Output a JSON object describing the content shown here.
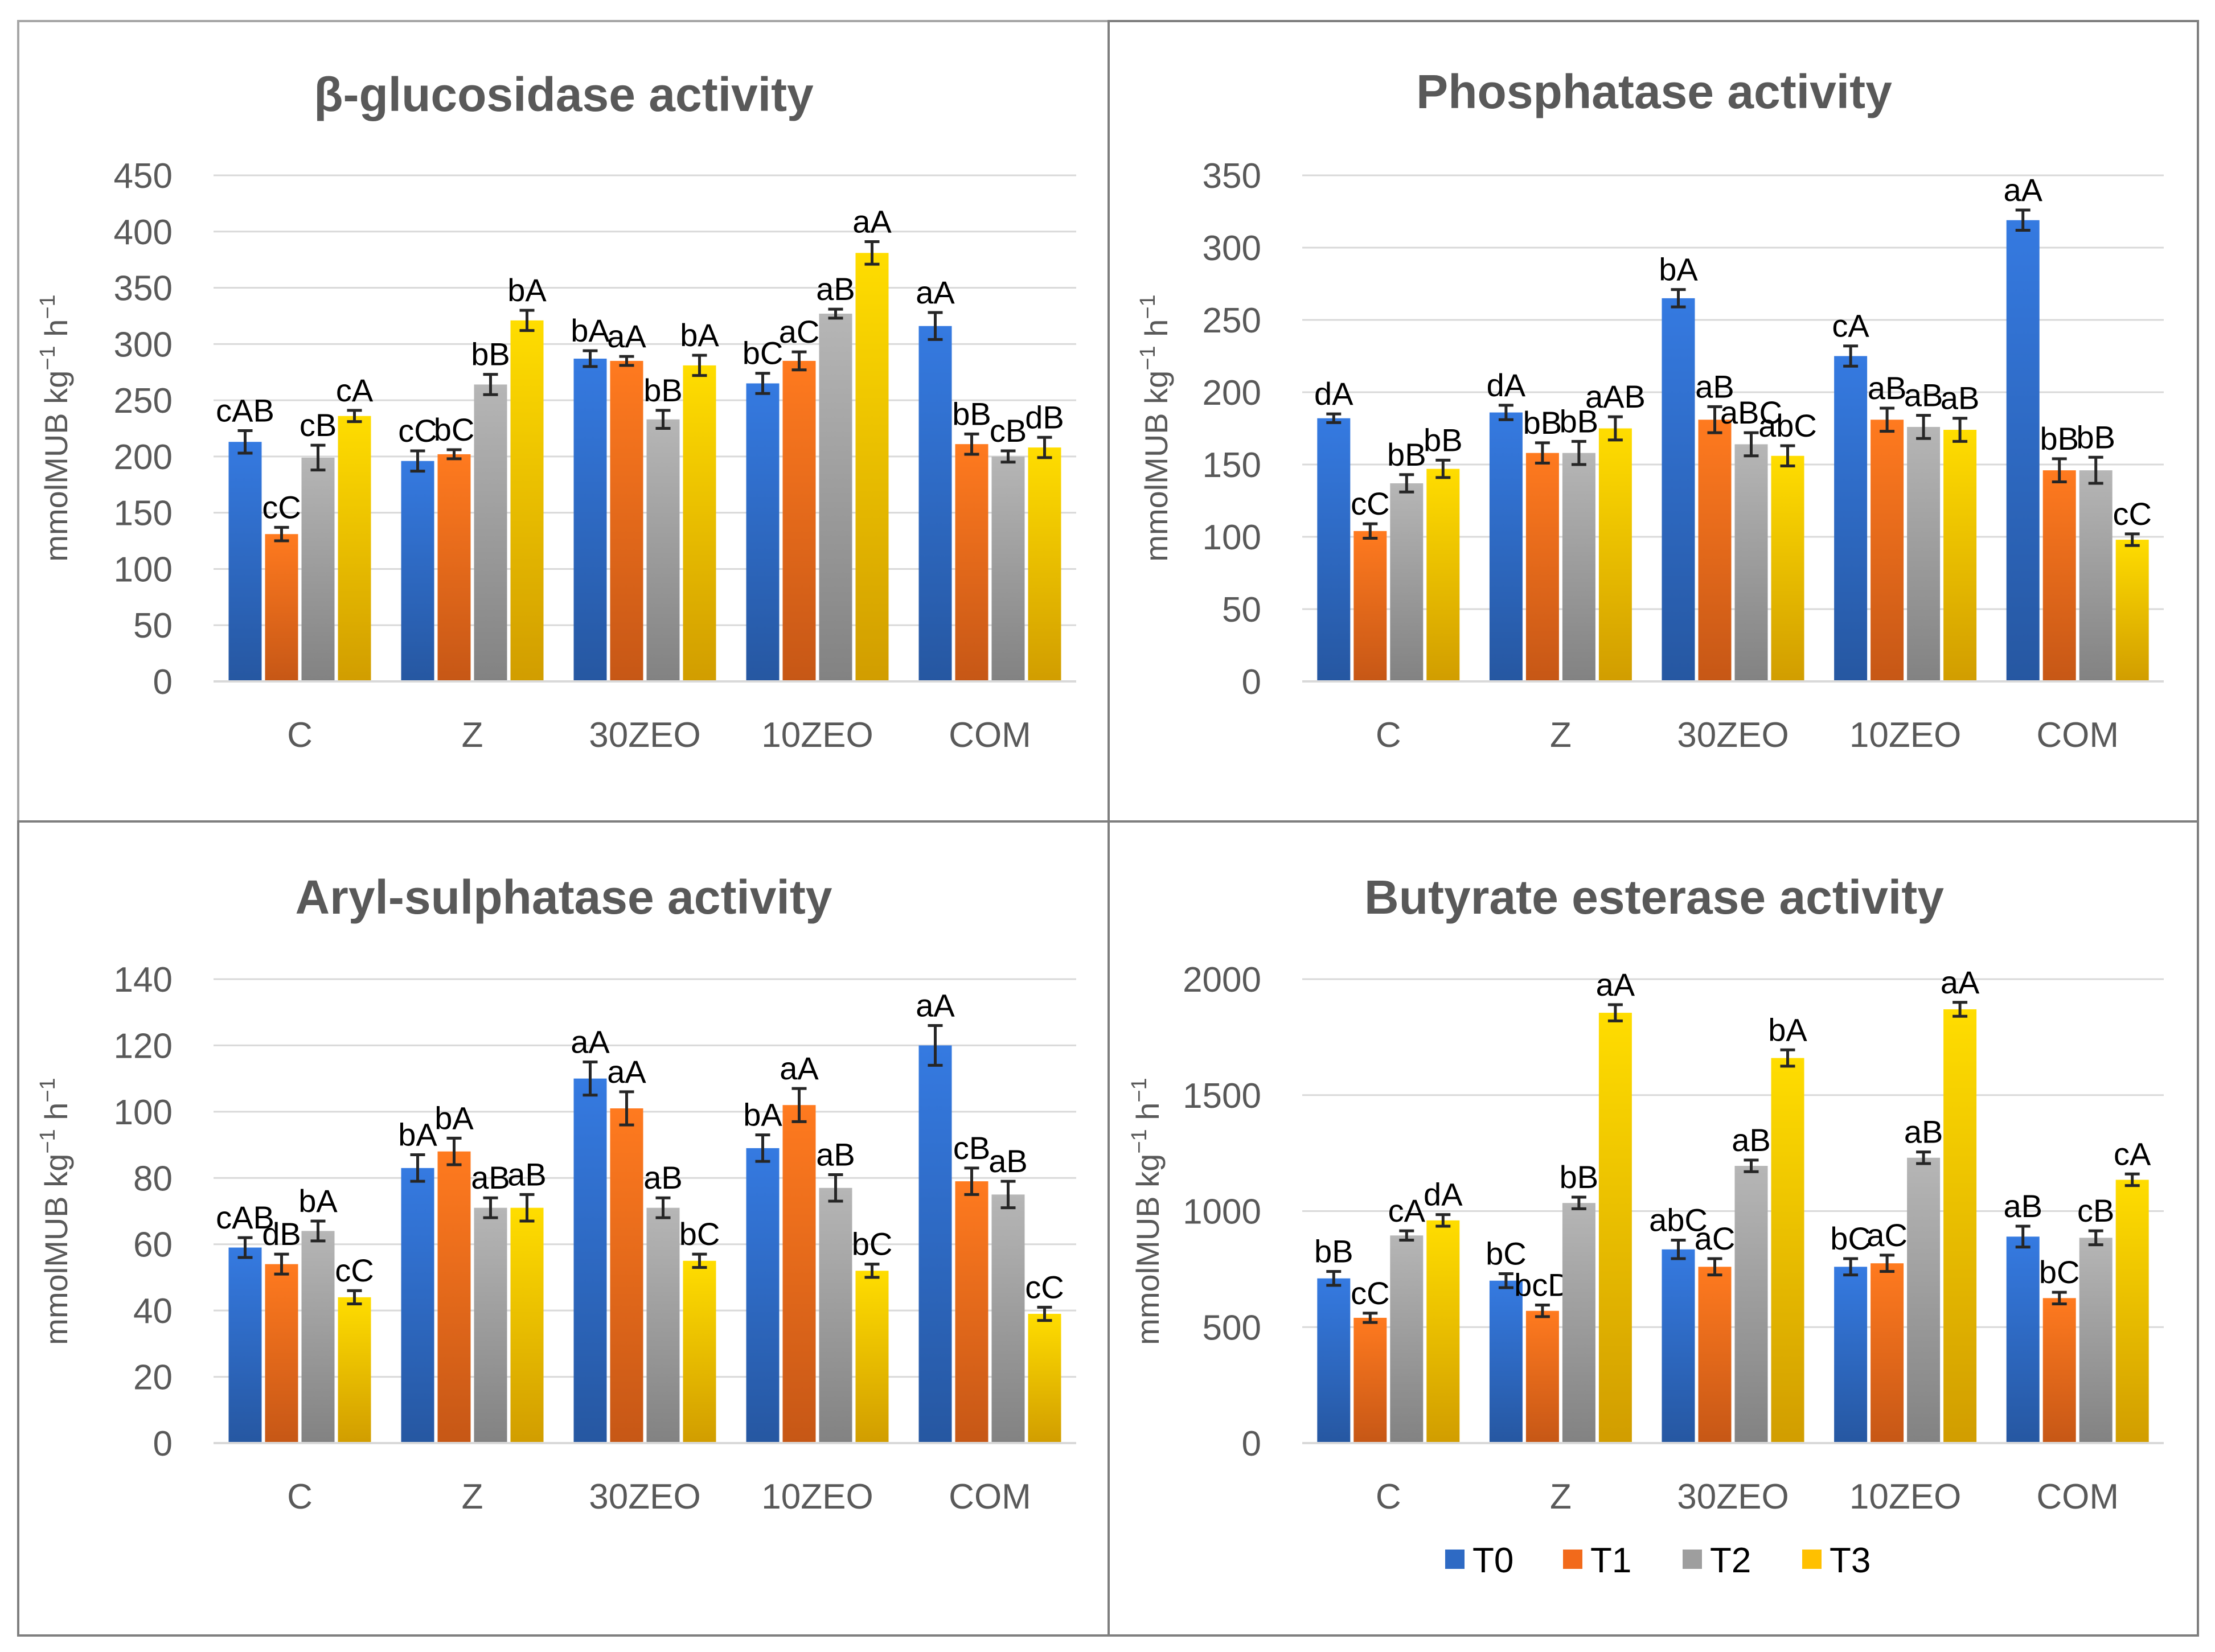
{
  "units": {
    "main": "mmolMUB kg",
    "sup1": "−1",
    "mid": " h",
    "sup2": "−1"
  },
  "series_colors": {
    "T0": "#2e6ac4",
    "T1": "#f26a1b",
    "T2": "#9e9e9e",
    "T3": "#ffc000"
  },
  "legend": [
    "T0",
    "T1",
    "T2",
    "T3"
  ],
  "chart_data": [
    {
      "type": "bar",
      "title": "β-glucosidase activity",
      "ylabel": "mmolMUB kg−1 h−1",
      "ylim": [
        0,
        450
      ],
      "yticks": [
        "0",
        "50",
        "100",
        "150",
        "200",
        "250",
        "300",
        "350",
        "400",
        "450"
      ],
      "categories": [
        "C",
        "Z",
        "30ZEO",
        "10ZEO",
        "COM"
      ],
      "series": [
        {
          "name": "T0",
          "values": [
            213,
            196,
            287,
            265,
            316
          ],
          "errors": [
            10,
            9,
            7,
            9,
            12
          ],
          "labels": [
            "cAB",
            "cC",
            "bA",
            "bC",
            "aA"
          ]
        },
        {
          "name": "T1",
          "values": [
            131,
            202,
            285,
            285,
            211
          ],
          "errors": [
            6,
            4,
            4,
            8,
            9
          ],
          "labels": [
            "cC",
            "bC",
            "aA",
            "aC",
            "bB"
          ]
        },
        {
          "name": "T2",
          "values": [
            199,
            264,
            233,
            327,
            200
          ],
          "errors": [
            11,
            9,
            8,
            4,
            5
          ],
          "labels": [
            "cB",
            "bB",
            "bB",
            "aB",
            "cB"
          ]
        },
        {
          "name": "T3",
          "values": [
            236,
            321,
            281,
            381,
            208
          ],
          "errors": [
            5,
            9,
            9,
            10,
            9
          ],
          "labels": [
            "cA",
            "bA",
            "bA",
            "aA",
            "dB"
          ]
        }
      ]
    },
    {
      "type": "bar",
      "title": "Phosphatase activity",
      "ylabel": "mmolMUB kg−1 h−1",
      "ylim": [
        0,
        350
      ],
      "yticks": [
        "0",
        "50",
        "100",
        "150",
        "200",
        "250",
        "300",
        "350"
      ],
      "categories": [
        "C",
        "Z",
        "30ZEO",
        "10ZEO",
        "COM"
      ],
      "series": [
        {
          "name": "T0",
          "values": [
            182,
            186,
            265,
            225,
            319
          ],
          "errors": [
            3,
            5,
            6,
            7,
            7
          ],
          "labels": [
            "dA",
            "dA",
            "bA",
            "cA",
            "aA"
          ]
        },
        {
          "name": "T1",
          "values": [
            104,
            158,
            181,
            181,
            146
          ],
          "errors": [
            5,
            7,
            9,
            8,
            8
          ],
          "labels": [
            "cC",
            "bB",
            "aB",
            "aB",
            "bB"
          ]
        },
        {
          "name": "T2",
          "values": [
            137,
            158,
            164,
            176,
            146
          ],
          "errors": [
            6,
            8,
            8,
            8,
            9
          ],
          "labels": [
            "bB",
            "bB",
            "aBC",
            "aB",
            "bB"
          ]
        },
        {
          "name": "T3",
          "values": [
            147,
            175,
            156,
            174,
            98
          ],
          "errors": [
            6,
            8,
            7,
            8,
            4
          ],
          "labels": [
            "bB",
            "aAB",
            "abC",
            "aB",
            "cC"
          ]
        }
      ]
    },
    {
      "type": "bar",
      "title": "Aryl-sulphatase activity",
      "ylabel": "mmolMUB kg−1 h−1",
      "ylim": [
        0,
        140
      ],
      "yticks": [
        "0",
        "20",
        "40",
        "60",
        "80",
        "100",
        "120",
        "140"
      ],
      "categories": [
        "C",
        "Z",
        "30ZEO",
        "10ZEO",
        "COM"
      ],
      "series": [
        {
          "name": "T0",
          "values": [
            59,
            83,
            110,
            89,
            120
          ],
          "errors": [
            3,
            4,
            5,
            4,
            6
          ],
          "labels": [
            "cAB",
            "bA",
            "aA",
            "bA",
            "aA"
          ]
        },
        {
          "name": "T1",
          "values": [
            54,
            88,
            101,
            102,
            79
          ],
          "errors": [
            3,
            4,
            5,
            5,
            4
          ],
          "labels": [
            "dB",
            "bA",
            "aA",
            "aA",
            "cB"
          ]
        },
        {
          "name": "T2",
          "values": [
            64,
            71,
            71,
            77,
            75
          ],
          "errors": [
            3,
            3,
            3,
            4,
            4
          ],
          "labels": [
            "bA",
            "aB",
            "aB",
            "aB",
            "aB"
          ]
        },
        {
          "name": "T3",
          "values": [
            44,
            71,
            55,
            52,
            39
          ],
          "errors": [
            2,
            4,
            2,
            2,
            2
          ],
          "labels": [
            "cC",
            "aB",
            "bC",
            "bC",
            "cC"
          ]
        }
      ]
    },
    {
      "type": "bar",
      "title": "Butyrate esterase activity",
      "ylabel": "mmolMUB kg−1 h−1",
      "ylim": [
        0,
        2000
      ],
      "yticks": [
        "0",
        "500",
        "1000",
        "1500",
        "2000"
      ],
      "categories": [
        "C",
        "Z",
        "30ZEO",
        "10ZEO",
        "COM"
      ],
      "series": [
        {
          "name": "T0",
          "values": [
            710,
            700,
            835,
            760,
            890
          ],
          "errors": [
            30,
            30,
            40,
            35,
            45
          ],
          "labels": [
            "bB",
            "bC",
            "abC",
            "bC",
            "aB"
          ]
        },
        {
          "name": "T1",
          "values": [
            540,
            570,
            760,
            775,
            625
          ],
          "errors": [
            20,
            25,
            35,
            35,
            25
          ],
          "labels": [
            "cC",
            "bcD",
            "aC",
            "aC",
            "bC"
          ]
        },
        {
          "name": "T2",
          "values": [
            895,
            1035,
            1195,
            1230,
            885
          ],
          "errors": [
            20,
            25,
            25,
            25,
            30
          ],
          "labels": [
            "cA",
            "bB",
            "aB",
            "aB",
            "cB"
          ]
        },
        {
          "name": "T3",
          "values": [
            960,
            1855,
            1660,
            1870,
            1135
          ],
          "errors": [
            25,
            35,
            35,
            30,
            25
          ],
          "labels": [
            "dA",
            "aA",
            "bA",
            "aA",
            "cA"
          ]
        }
      ]
    }
  ]
}
